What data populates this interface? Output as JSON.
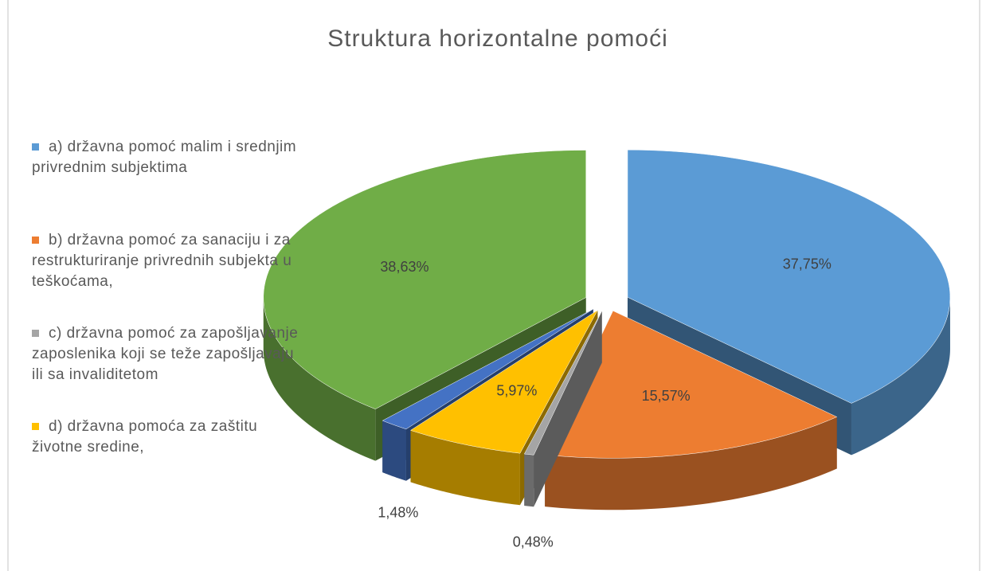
{
  "chart_data": {
    "type": "pie3d",
    "title": "Struktura horizontalne pomoći",
    "categories": [
      "a) državna pomoć malim i srednjim privrednim subjektima",
      "b) državna pomoć za sanaciju i za restrukturiranje privrednih subjekta u teškoćama,",
      "c) državna pomoć za zapošljavanje zaposlenika koji se teže zapošljavaju ili sa invaliditetom",
      "d) državna pomoća za zaštitu životne sredine,",
      null,
      null
    ],
    "values": [
      37.75,
      15.57,
      0.48,
      5.97,
      1.48,
      38.63
    ],
    "value_labels": [
      "37,75%",
      "15,57%",
      "0,48%",
      "5,97%",
      "1,48%",
      "38,63%"
    ],
    "colors": [
      "#5b9bd5",
      "#ed7d31",
      "#a5a5a5",
      "#ffc000",
      "#4472c4",
      "#70ad47"
    ],
    "legend": "left"
  }
}
